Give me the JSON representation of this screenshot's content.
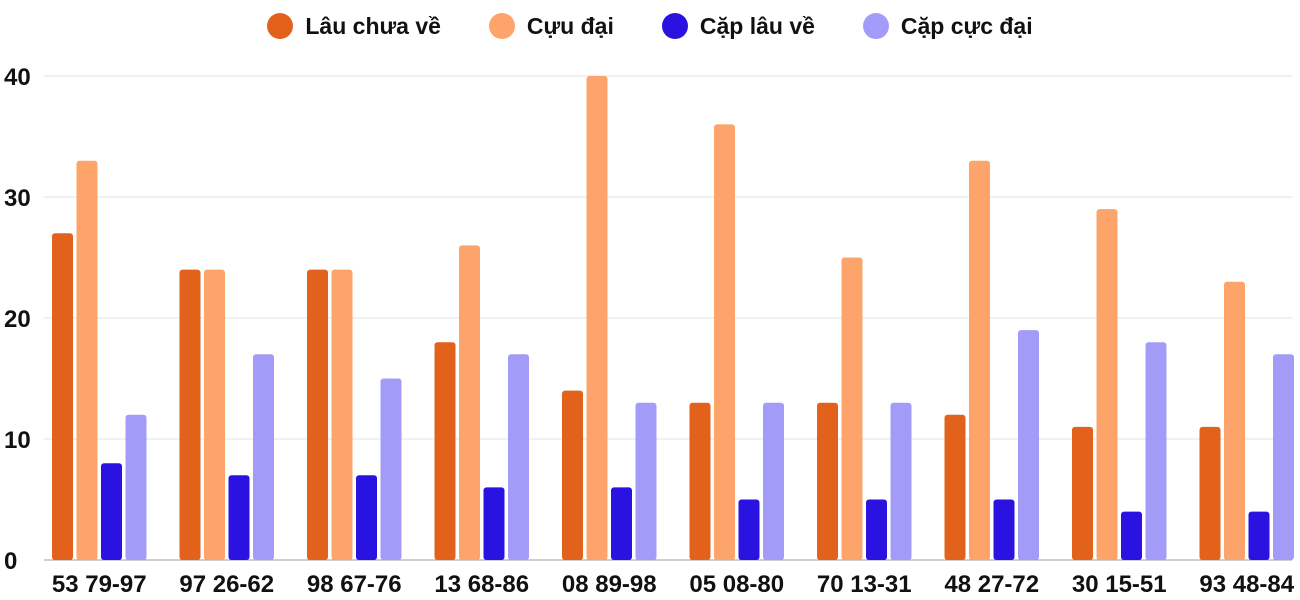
{
  "chart_data": {
    "type": "bar",
    "title": "",
    "xlabel": "",
    "ylabel": "",
    "ylim": [
      0,
      40
    ],
    "yticks": [
      0,
      10,
      20,
      30,
      40
    ],
    "grid": true,
    "legend_position": "top-center",
    "categories": [
      "53 79-97",
      "97 26-62",
      "98 67-76",
      "13 68-86",
      "08 89-98",
      "05 08-80",
      "70 13-31",
      "48 27-72",
      "30 15-51",
      "93 48-84"
    ],
    "series": [
      {
        "name": "Lâu chưa về",
        "color": "#E2621B",
        "values": [
          27,
          24,
          24,
          18,
          14,
          13,
          13,
          12,
          11,
          11
        ]
      },
      {
        "name": "Cựu đại",
        "color": "#FCA46A",
        "values": [
          33,
          24,
          24,
          26,
          40,
          36,
          25,
          33,
          29,
          23
        ]
      },
      {
        "name": "Cặp lâu về",
        "color": "#2A13E0",
        "values": [
          8,
          7,
          7,
          6,
          6,
          5,
          5,
          5,
          4,
          4
        ]
      },
      {
        "name": "Cặp cực đại",
        "color": "#A39BF8",
        "values": [
          12,
          17,
          15,
          17,
          13,
          13,
          13,
          19,
          18,
          17
        ]
      }
    ]
  }
}
